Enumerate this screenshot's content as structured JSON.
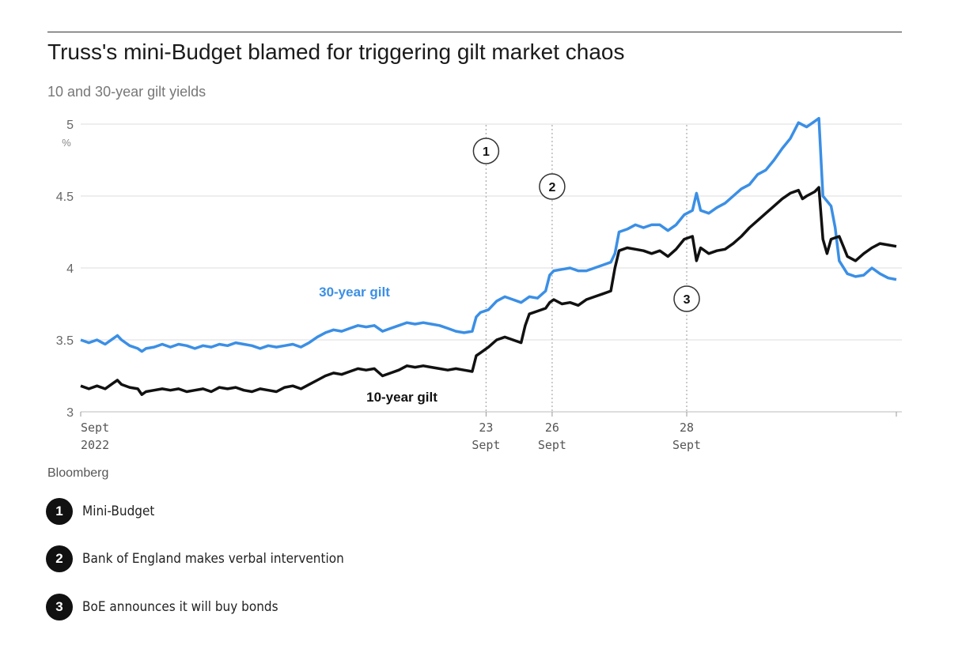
{
  "title": "Truss's mini-Budget blamed for triggering gilt market chaos",
  "subtitle": "10 and 30-year gilt yields",
  "source": "Bloomberg",
  "colors": {
    "gilt30": "#3b8fe5",
    "gilt10": "#111111",
    "grid": "#dddddd"
  },
  "chart_data": {
    "type": "line",
    "title": "Truss's mini-Budget blamed for triggering gilt market chaos",
    "subtitle": "10 and 30-year gilt yields",
    "ylabel": "%",
    "ylim": [
      3,
      5
    ],
    "xlim": [
      0,
      100
    ],
    "yticks": [
      {
        "value": 5,
        "label": "5"
      },
      {
        "value": 4.5,
        "label": "4.5"
      },
      {
        "value": 4,
        "label": "4"
      },
      {
        "value": 3.5,
        "label": "3.5"
      },
      {
        "value": 3,
        "label": "3"
      }
    ],
    "xticks": [
      {
        "x": 0,
        "line1": "Sept",
        "line2": "2022",
        "anchor": "start"
      },
      {
        "x": 49.7,
        "line1": "23",
        "line2": "Sept",
        "anchor": "middle"
      },
      {
        "x": 57.8,
        "line1": "26",
        "line2": "Sept",
        "anchor": "middle"
      },
      {
        "x": 74.3,
        "line1": "28",
        "line2": "Sept",
        "anchor": "middle"
      }
    ],
    "series": [
      {
        "name": "30-year gilt",
        "label_text": "30-year gilt",
        "color": "#3b8fe5",
        "points": [
          [
            0,
            3.5
          ],
          [
            1,
            3.48
          ],
          [
            2,
            3.5
          ],
          [
            3,
            3.47
          ],
          [
            4,
            3.51
          ],
          [
            4.5,
            3.53
          ],
          [
            5,
            3.5
          ],
          [
            6,
            3.46
          ],
          [
            7,
            3.44
          ],
          [
            7.5,
            3.42
          ],
          [
            8,
            3.44
          ],
          [
            9,
            3.45
          ],
          [
            10,
            3.47
          ],
          [
            11,
            3.45
          ],
          [
            12,
            3.47
          ],
          [
            13,
            3.46
          ],
          [
            14,
            3.44
          ],
          [
            15,
            3.46
          ],
          [
            16,
            3.45
          ],
          [
            17,
            3.47
          ],
          [
            18,
            3.46
          ],
          [
            19,
            3.48
          ],
          [
            20,
            3.47
          ],
          [
            21,
            3.46
          ],
          [
            22,
            3.44
          ],
          [
            23,
            3.46
          ],
          [
            24,
            3.45
          ],
          [
            25,
            3.46
          ],
          [
            26,
            3.47
          ],
          [
            27,
            3.45
          ],
          [
            28,
            3.48
          ],
          [
            29,
            3.52
          ],
          [
            30,
            3.55
          ],
          [
            31,
            3.57
          ],
          [
            32,
            3.56
          ],
          [
            33,
            3.58
          ],
          [
            34,
            3.6
          ],
          [
            35,
            3.59
          ],
          [
            36,
            3.6
          ],
          [
            37,
            3.56
          ],
          [
            38,
            3.58
          ],
          [
            39,
            3.6
          ],
          [
            40,
            3.62
          ],
          [
            41,
            3.61
          ],
          [
            42,
            3.62
          ],
          [
            43,
            3.61
          ],
          [
            44,
            3.6
          ],
          [
            45,
            3.58
          ],
          [
            46,
            3.56
          ],
          [
            47,
            3.55
          ],
          [
            48,
            3.56
          ],
          [
            48.5,
            3.66
          ],
          [
            49,
            3.69
          ],
          [
            50,
            3.71
          ],
          [
            51,
            3.77
          ],
          [
            52,
            3.8
          ],
          [
            53,
            3.78
          ],
          [
            54,
            3.76
          ],
          [
            55,
            3.8
          ],
          [
            56,
            3.79
          ],
          [
            57,
            3.84
          ],
          [
            57.5,
            3.95
          ],
          [
            58,
            3.98
          ],
          [
            59,
            3.99
          ],
          [
            60,
            4.0
          ],
          [
            61,
            3.98
          ],
          [
            62,
            3.98
          ],
          [
            63,
            4.0
          ],
          [
            64,
            4.02
          ],
          [
            65,
            4.04
          ],
          [
            65.5,
            4.1
          ],
          [
            66,
            4.25
          ],
          [
            67,
            4.27
          ],
          [
            68,
            4.3
          ],
          [
            69,
            4.28
          ],
          [
            70,
            4.3
          ],
          [
            71,
            4.3
          ],
          [
            72,
            4.26
          ],
          [
            73,
            4.3
          ],
          [
            74,
            4.37
          ],
          [
            75,
            4.4
          ],
          [
            75.5,
            4.52
          ],
          [
            76,
            4.4
          ],
          [
            77,
            4.38
          ],
          [
            78,
            4.42
          ],
          [
            79,
            4.45
          ],
          [
            80,
            4.5
          ],
          [
            81,
            4.55
          ],
          [
            82,
            4.58
          ],
          [
            83,
            4.65
          ],
          [
            84,
            4.68
          ],
          [
            85,
            4.75
          ],
          [
            86,
            4.83
          ],
          [
            87,
            4.9
          ],
          [
            88,
            5.01
          ],
          [
            89,
            4.98
          ],
          [
            90,
            5.02
          ],
          [
            90.5,
            5.04
          ],
          [
            91,
            4.5
          ],
          [
            92,
            4.43
          ],
          [
            92.5,
            4.28
          ],
          [
            93,
            4.05
          ],
          [
            94,
            3.96
          ],
          [
            95,
            3.94
          ],
          [
            96,
            3.95
          ],
          [
            97,
            4.0
          ],
          [
            98,
            3.96
          ],
          [
            99,
            3.93
          ],
          [
            100,
            3.92
          ]
        ]
      },
      {
        "name": "10-year gilt",
        "label_text": "10-year gilt",
        "color": "#111111",
        "points": [
          [
            0,
            3.18
          ],
          [
            1,
            3.16
          ],
          [
            2,
            3.18
          ],
          [
            3,
            3.16
          ],
          [
            4,
            3.2
          ],
          [
            4.5,
            3.22
          ],
          [
            5,
            3.19
          ],
          [
            6,
            3.17
          ],
          [
            7,
            3.16
          ],
          [
            7.5,
            3.12
          ],
          [
            8,
            3.14
          ],
          [
            9,
            3.15
          ],
          [
            10,
            3.16
          ],
          [
            11,
            3.15
          ],
          [
            12,
            3.16
          ],
          [
            13,
            3.14
          ],
          [
            14,
            3.15
          ],
          [
            15,
            3.16
          ],
          [
            16,
            3.14
          ],
          [
            17,
            3.17
          ],
          [
            18,
            3.16
          ],
          [
            19,
            3.17
          ],
          [
            20,
            3.15
          ],
          [
            21,
            3.14
          ],
          [
            22,
            3.16
          ],
          [
            23,
            3.15
          ],
          [
            24,
            3.14
          ],
          [
            25,
            3.17
          ],
          [
            26,
            3.18
          ],
          [
            27,
            3.16
          ],
          [
            28,
            3.19
          ],
          [
            29,
            3.22
          ],
          [
            30,
            3.25
          ],
          [
            31,
            3.27
          ],
          [
            32,
            3.26
          ],
          [
            33,
            3.28
          ],
          [
            34,
            3.3
          ],
          [
            35,
            3.29
          ],
          [
            36,
            3.3
          ],
          [
            37,
            3.25
          ],
          [
            38,
            3.27
          ],
          [
            39,
            3.29
          ],
          [
            40,
            3.32
          ],
          [
            41,
            3.31
          ],
          [
            42,
            3.32
          ],
          [
            43,
            3.31
          ],
          [
            44,
            3.3
          ],
          [
            45,
            3.29
          ],
          [
            46,
            3.3
          ],
          [
            47,
            3.29
          ],
          [
            48,
            3.28
          ],
          [
            48.5,
            3.39
          ],
          [
            49,
            3.41
          ],
          [
            50,
            3.45
          ],
          [
            51,
            3.5
          ],
          [
            52,
            3.52
          ],
          [
            53,
            3.5
          ],
          [
            54,
            3.48
          ],
          [
            54.5,
            3.6
          ],
          [
            55,
            3.68
          ],
          [
            56,
            3.7
          ],
          [
            57,
            3.72
          ],
          [
            57.5,
            3.76
          ],
          [
            58,
            3.78
          ],
          [
            59,
            3.75
          ],
          [
            60,
            3.76
          ],
          [
            61,
            3.74
          ],
          [
            62,
            3.78
          ],
          [
            63,
            3.8
          ],
          [
            64,
            3.82
          ],
          [
            65,
            3.84
          ],
          [
            65.5,
            4.0
          ],
          [
            66,
            4.12
          ],
          [
            67,
            4.14
          ],
          [
            68,
            4.13
          ],
          [
            69,
            4.12
          ],
          [
            70,
            4.1
          ],
          [
            71,
            4.12
          ],
          [
            72,
            4.08
          ],
          [
            73,
            4.13
          ],
          [
            74,
            4.2
          ],
          [
            75,
            4.22
          ],
          [
            75.5,
            4.05
          ],
          [
            76,
            4.14
          ],
          [
            77,
            4.1
          ],
          [
            78,
            4.12
          ],
          [
            79,
            4.13
          ],
          [
            80,
            4.17
          ],
          [
            81,
            4.22
          ],
          [
            82,
            4.28
          ],
          [
            83,
            4.33
          ],
          [
            84,
            4.38
          ],
          [
            85,
            4.43
          ],
          [
            86,
            4.48
          ],
          [
            87,
            4.52
          ],
          [
            88,
            4.54
          ],
          [
            88.5,
            4.48
          ],
          [
            89,
            4.5
          ],
          [
            90,
            4.53
          ],
          [
            90.5,
            4.56
          ],
          [
            91,
            4.2
          ],
          [
            91.5,
            4.1
          ],
          [
            92,
            4.2
          ],
          [
            93,
            4.22
          ],
          [
            93.5,
            4.15
          ],
          [
            94,
            4.08
          ],
          [
            95,
            4.05
          ],
          [
            96,
            4.1
          ],
          [
            97,
            4.14
          ],
          [
            98,
            4.17
          ],
          [
            99,
            4.16
          ],
          [
            100,
            4.15
          ]
        ]
      }
    ],
    "annotations": [
      {
        "num": "1",
        "x": 49.7
      },
      {
        "num": "2",
        "x": 57.8
      },
      {
        "num": "3",
        "x": 74.3
      }
    ],
    "legend": [
      {
        "num": "1",
        "text": "Mini-Budget"
      },
      {
        "num": "2",
        "text": "Bank of England makes verbal intervention"
      },
      {
        "num": "3",
        "text": "BoE announces it will buy bonds"
      }
    ]
  }
}
